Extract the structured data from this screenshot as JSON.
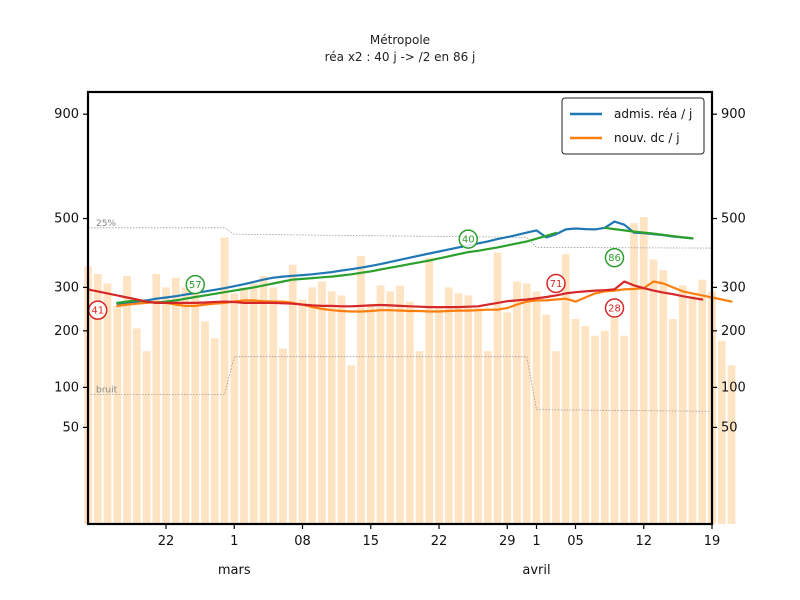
{
  "chart_data": {
    "type": "line",
    "title": "Métropole",
    "subtitle": "réa x2 : 40 j -> /2 en 86 j",
    "x_start": "2021-02-14",
    "x_end": "2021-04-19",
    "x_tick_labels": [
      {
        "date": "2021-02-22",
        "label": "22"
      },
      {
        "date": "2021-03-01",
        "label": "1"
      },
      {
        "date": "2021-03-08",
        "label": "08"
      },
      {
        "date": "2021-03-15",
        "label": "15"
      },
      {
        "date": "2021-03-22",
        "label": "22"
      },
      {
        "date": "2021-03-29",
        "label": "29"
      },
      {
        "date": "2021-04-01",
        "label": "1"
      },
      {
        "date": "2021-04-05",
        "label": "05"
      },
      {
        "date": "2021-04-12",
        "label": "12"
      },
      {
        "date": "2021-04-19",
        "label": "19"
      }
    ],
    "month_labels": [
      {
        "date": "2021-03-01",
        "label": "mars"
      },
      {
        "date": "2021-04-01",
        "label": "avril"
      }
    ],
    "y_scale": "sqrt",
    "ylim": [
      0,
      1000
    ],
    "y_ticks": [
      50,
      100,
      200,
      300,
      500,
      900
    ],
    "legend": {
      "position": "top-right",
      "entries": [
        {
          "label": "admis. réa / j",
          "color": "#1f77b4"
        },
        {
          "label": "nouv. dc / j",
          "color": "#ff7f0e"
        }
      ]
    },
    "bars": {
      "color": "#ffe4c4",
      "values": [
        355,
        335,
        310,
        255,
        330,
        205,
        160,
        335,
        300,
        325,
        300,
        310,
        220,
        185,
        440,
        285,
        300,
        310,
        330,
        300,
        165,
        360,
        270,
        300,
        315,
        290,
        280,
        135,
        385,
        260,
        305,
        290,
        305,
        265,
        160,
        380,
        250,
        300,
        285,
        280,
        250,
        160,
        395,
        240,
        315,
        310,
        290,
        235,
        160,
        390,
        225,
        210,
        190,
        200,
        240,
        190,
        485,
        505,
        375,
        345,
        225,
        305,
        280,
        320,
        290,
        180,
        135
      ]
    },
    "series": [
      {
        "name": "admis. réa / j",
        "color": "#1f77b4",
        "values": [
          null,
          null,
          null,
          260,
          262,
          265,
          268,
          272,
          275,
          278,
          282,
          286,
          290,
          294,
          298,
          303,
          308,
          314,
          320,
          325,
          328,
          330,
          332,
          334,
          337,
          340,
          344,
          348,
          352,
          357,
          362,
          368,
          374,
          380,
          386,
          392,
          398,
          404,
          410,
          416,
          422,
          428,
          435,
          441,
          448,
          455,
          462,
          440,
          450,
          465,
          468,
          466,
          465,
          470,
          490,
          480,
          455,
          453,
          450,
          447,
          443,
          440,
          437
        ]
      },
      {
        "name": "nouv. dc / j",
        "color": "#ff7f0e",
        "values": [
          null,
          null,
          null,
          255,
          258,
          260,
          262,
          264,
          262,
          258,
          255,
          255,
          258,
          260,
          262,
          265,
          268,
          268,
          266,
          265,
          265,
          262,
          258,
          252,
          248,
          245,
          243,
          242,
          242,
          243,
          245,
          245,
          244,
          243,
          243,
          242,
          242,
          243,
          244,
          244,
          245,
          246,
          246,
          250,
          258,
          265,
          268,
          268,
          270,
          272,
          265,
          275,
          285,
          290,
          292,
          295,
          296,
          298,
          315,
          310,
          300,
          290,
          285,
          280,
          275,
          270,
          265
        ]
      },
      {
        "name": "",
        "color": "#2ca02c",
        "values": [
          null,
          null,
          null,
          262,
          265,
          268,
          265,
          262,
          265,
          268,
          272,
          276,
          280,
          284,
          288,
          292,
          296,
          300,
          305,
          310,
          315,
          320,
          322,
          324,
          326,
          328,
          331,
          334,
          338,
          342,
          347,
          352,
          357,
          362,
          367,
          372,
          378,
          384,
          390,
          396,
          400,
          405,
          410,
          416,
          422,
          428,
          436,
          445,
          454,
          null,
          null,
          null,
          null,
          470,
          466,
          462,
          458,
          455,
          452,
          448,
          444,
          440,
          437
        ]
      },
      {
        "name": "",
        "color": "#d62728",
        "values": [
          295,
          290,
          285,
          280,
          275,
          270,
          265,
          262,
          262,
          262,
          262,
          262,
          263,
          264,
          265,
          264,
          262,
          262,
          262,
          262,
          261,
          260,
          258,
          256,
          255,
          255,
          254,
          254,
          255,
          256,
          257,
          256,
          255,
          254,
          253,
          252,
          252,
          252,
          252,
          253,
          254,
          258,
          262,
          266,
          268,
          270,
          273,
          276,
          280,
          285,
          288,
          290,
          292,
          293,
          295,
          315,
          305,
          298,
          292,
          287,
          283,
          278,
          274,
          270
        ]
      }
    ],
    "markers": [
      {
        "label": "41",
        "date": "2021-02-15",
        "value": 245,
        "color": "#d62728"
      },
      {
        "label": "57",
        "date": "2021-02-25",
        "value": 307,
        "color": "#2ca02c"
      },
      {
        "label": "40",
        "date": "2021-03-25",
        "value": 435,
        "color": "#2ca02c"
      },
      {
        "label": "71",
        "date": "2021-04-03",
        "value": 310,
        "color": "#d62728"
      },
      {
        "label": "86",
        "date": "2021-04-09",
        "value": 380,
        "color": "#2ca02c"
      },
      {
        "label": "28",
        "date": "2021-04-09",
        "value": 250,
        "color": "#d62728"
      }
    ],
    "reference_lines": [
      {
        "label": "25%",
        "color": "#999999",
        "points": [
          [
            "2021-02-14",
            470
          ],
          [
            "2021-02-28",
            470
          ],
          [
            "2021-03-01",
            450
          ],
          [
            "2021-03-31",
            440
          ],
          [
            "2021-04-01",
            410
          ],
          [
            "2021-04-19",
            408
          ]
        ]
      },
      {
        "label": "bruit",
        "color": "#999999",
        "points": [
          [
            "2021-02-14",
            90
          ],
          [
            "2021-02-28",
            90
          ],
          [
            "2021-03-01",
            150
          ],
          [
            "2021-03-31",
            150
          ],
          [
            "2021-04-01",
            70
          ],
          [
            "2021-04-19",
            68
          ]
        ]
      }
    ],
    "grid": false
  }
}
